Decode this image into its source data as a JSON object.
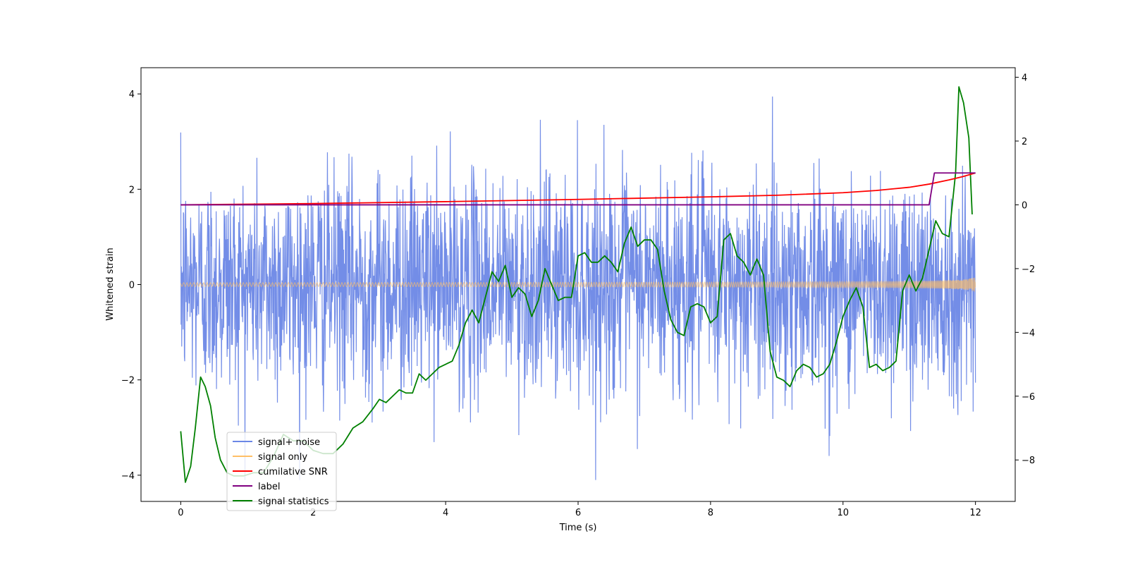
{
  "chart_data": {
    "type": "line",
    "title": "",
    "xlabel": "Time (s)",
    "ylabel": "Whitened strain",
    "y2label": "",
    "xlim": [
      -0.6,
      12.6
    ],
    "ylim": [
      -4.55,
      4.55
    ],
    "y2lim": [
      -9.3,
      4.3
    ],
    "xticks": [
      0,
      2,
      4,
      6,
      8,
      10,
      12
    ],
    "yticks": [
      -4,
      -2,
      0,
      2,
      4
    ],
    "y2ticks": [
      -8,
      -6,
      -4,
      -2,
      0,
      2,
      4
    ],
    "grid": false,
    "legend_position": "lower-left",
    "legend": [
      {
        "label": "signal+ noise",
        "color": "#6b87e6"
      },
      {
        "label": "signal only",
        "color": "#ffbf66"
      },
      {
        "label": "cumilative SNR",
        "color": "#ff0000"
      },
      {
        "label": "label",
        "color": "#800080"
      },
      {
        "label": "signal statistics",
        "color": "#008000"
      }
    ],
    "series": [
      {
        "name": "signal+ noise",
        "axis": "left",
        "color": "#6b87e6",
        "x_range": [
          0,
          12
        ],
        "noise_std": 1.15,
        "note": "dense random noise band roughly between -4 and 4"
      },
      {
        "name": "signal only",
        "axis": "left",
        "color": "#ffbf66",
        "x_range": [
          0,
          12
        ],
        "envelope_start": 0.04,
        "envelope_end": 1.2
      },
      {
        "name": "cumilative SNR",
        "axis": "right",
        "color": "#ff0000",
        "x": [
          0,
          2,
          4,
          6,
          8,
          9,
          10,
          10.5,
          11,
          11.3,
          11.6,
          11.8,
          12
        ],
        "values": [
          0,
          0.04,
          0.1,
          0.17,
          0.25,
          0.3,
          0.38,
          0.45,
          0.55,
          0.65,
          0.78,
          0.88,
          1.0
        ]
      },
      {
        "name": "label",
        "axis": "right",
        "color": "#800080",
        "x": [
          0,
          11.3,
          11.38,
          12
        ],
        "values": [
          0,
          0,
          1,
          1
        ]
      },
      {
        "name": "signal statistics",
        "axis": "right",
        "color": "#008000",
        "x": [
          0,
          0.07,
          0.15,
          0.22,
          0.3,
          0.37,
          0.45,
          0.52,
          0.6,
          0.7,
          0.8,
          0.95,
          1.1,
          1.25,
          1.4,
          1.55,
          1.7,
          1.85,
          2.0,
          2.15,
          2.3,
          2.45,
          2.6,
          2.75,
          2.9,
          3.0,
          3.1,
          3.2,
          3.3,
          3.4,
          3.5,
          3.6,
          3.7,
          3.8,
          3.9,
          4.0,
          4.1,
          4.2,
          4.3,
          4.4,
          4.5,
          4.6,
          4.7,
          4.8,
          4.9,
          5.0,
          5.1,
          5.2,
          5.3,
          5.4,
          5.5,
          5.6,
          5.7,
          5.8,
          5.9,
          6.0,
          6.1,
          6.2,
          6.3,
          6.4,
          6.5,
          6.6,
          6.7,
          6.8,
          6.9,
          7.0,
          7.1,
          7.2,
          7.3,
          7.4,
          7.5,
          7.6,
          7.7,
          7.8,
          7.9,
          8.0,
          8.1,
          8.2,
          8.3,
          8.4,
          8.5,
          8.6,
          8.7,
          8.8,
          8.9,
          9.0,
          9.1,
          9.2,
          9.3,
          9.4,
          9.5,
          9.6,
          9.7,
          9.8,
          9.9,
          10.0,
          10.1,
          10.2,
          10.3,
          10.4,
          10.5,
          10.6,
          10.7,
          10.8,
          10.9,
          11.0,
          11.1,
          11.2,
          11.3,
          11.4,
          11.5,
          11.6,
          11.7,
          11.75,
          11.82,
          11.9,
          11.95
        ],
        "values": [
          -7.1,
          -8.7,
          -8.2,
          -7.0,
          -5.4,
          -5.7,
          -6.3,
          -7.3,
          -8.0,
          -8.4,
          -8.5,
          -8.5,
          -8.4,
          -8.4,
          -7.9,
          -7.2,
          -7.4,
          -7.4,
          -7.7,
          -7.8,
          -7.8,
          -7.5,
          -7.0,
          -6.8,
          -6.4,
          -6.1,
          -6.2,
          -6.0,
          -5.8,
          -5.9,
          -5.9,
          -5.3,
          -5.5,
          -5.3,
          -5.1,
          -5.0,
          -4.9,
          -4.4,
          -3.7,
          -3.3,
          -3.7,
          -2.9,
          -2.1,
          -2.4,
          -1.9,
          -2.9,
          -2.6,
          -2.8,
          -3.5,
          -3.0,
          -2.0,
          -2.5,
          -3.0,
          -2.9,
          -2.9,
          -1.6,
          -1.5,
          -1.8,
          -1.8,
          -1.6,
          -1.8,
          -2.1,
          -1.2,
          -0.7,
          -1.3,
          -1.1,
          -1.1,
          -1.4,
          -2.7,
          -3.6,
          -4.0,
          -4.1,
          -3.2,
          -3.1,
          -3.2,
          -3.7,
          -3.5,
          -1.1,
          -0.9,
          -1.6,
          -1.8,
          -2.2,
          -1.7,
          -2.2,
          -4.6,
          -5.4,
          -5.5,
          -5.7,
          -5.2,
          -5.0,
          -5.1,
          -5.4,
          -5.3,
          -5.0,
          -4.3,
          -3.5,
          -3.0,
          -2.6,
          -3.2,
          -5.1,
          -5.0,
          -5.2,
          -5.1,
          -4.9,
          -2.7,
          -2.2,
          -2.7,
          -2.3,
          -1.4,
          -0.5,
          -0.9,
          -1.0,
          1.0,
          3.7,
          3.2,
          2.1,
          -0.3
        ]
      }
    ]
  }
}
